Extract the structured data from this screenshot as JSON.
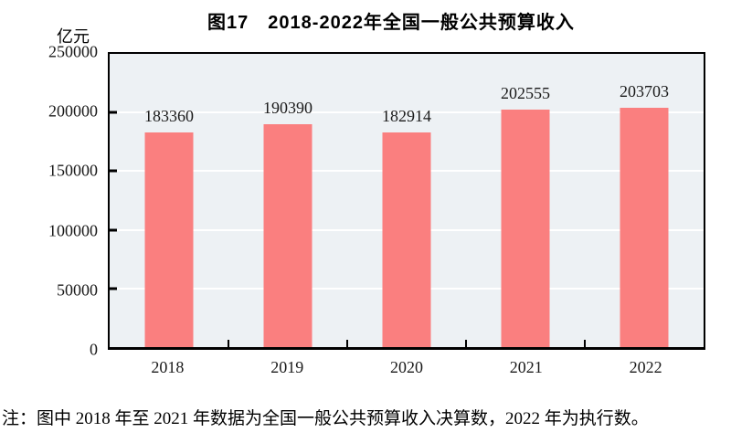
{
  "header": {
    "title": "图17　2018-2022年全国一般公共预算收入",
    "unit_label": "亿元"
  },
  "note": "注：图中 2018 年至 2021 年数据为全国一般公共预算收入决算数，2022 年为执行数。",
  "colors": {
    "bar": "#FA7F7F",
    "plot_background": "#EDF1F4",
    "gridline": "#FFFFFF",
    "axis": "#000000",
    "text": "#1A1A1A"
  },
  "chart_data": {
    "type": "bar",
    "title": "图17　2018-2022年全国一般公共预算收入",
    "categories": [
      "2018",
      "2019",
      "2020",
      "2021",
      "2022"
    ],
    "values": [
      183360,
      190390,
      182914,
      202555,
      203703
    ],
    "data_labels": [
      "183360",
      "190390",
      "182914",
      "202555",
      "203703"
    ],
    "xlabel": "",
    "ylabel": "亿元",
    "ylim": [
      0,
      250000
    ],
    "yticks": [
      0,
      50000,
      100000,
      150000,
      200000,
      250000
    ],
    "ytick_labels": [
      "0",
      "50000",
      "100000",
      "150000",
      "200000",
      "250000"
    ],
    "grid": true,
    "legend_position": "none",
    "note": "注：图中 2018 年至 2021 年数据为全国一般公共预算收入决算数，2022 年为执行数。"
  }
}
